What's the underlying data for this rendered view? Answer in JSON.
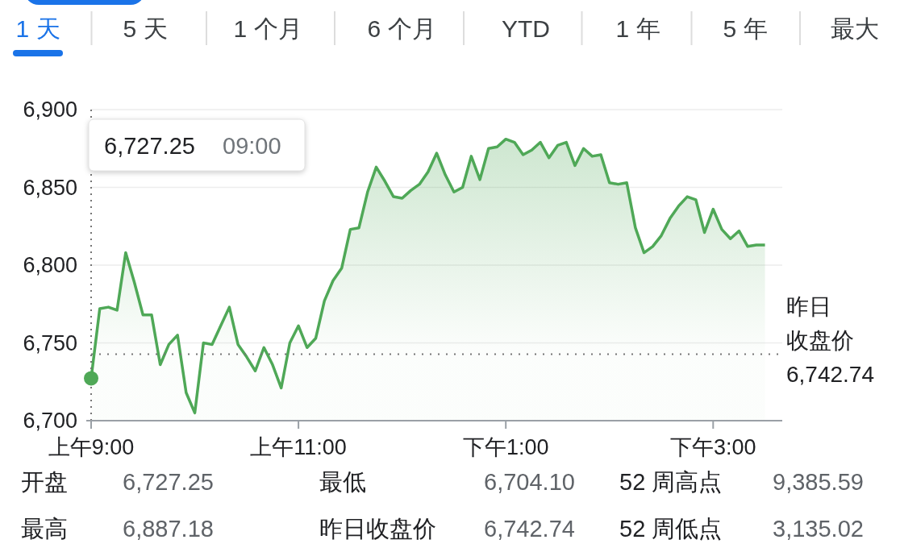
{
  "chart_data": {
    "type": "area",
    "categories": [
      "上午9:00",
      null,
      null,
      null,
      null,
      null,
      null,
      null,
      null,
      null,
      null,
      null,
      null,
      null,
      null,
      null,
      null,
      null,
      null,
      null,
      null,
      null,
      null,
      null,
      "上午11:00",
      null,
      null,
      null,
      null,
      null,
      null,
      null,
      null,
      null,
      null,
      null,
      null,
      null,
      null,
      null,
      null,
      null,
      null,
      null,
      null,
      null,
      null,
      null,
      "下午1:00",
      null,
      null,
      null,
      null,
      null,
      null,
      null,
      null,
      null,
      null,
      null,
      null,
      null,
      null,
      null,
      null,
      null,
      null,
      null,
      null,
      null,
      null,
      null,
      "下午3:00",
      null,
      null,
      null,
      null,
      null,
      null,
      null,
      null
    ],
    "series": [
      {
        "color": "#4fa857",
        "values": [
          6727.25,
          6772,
          6773,
          6771,
          6808,
          6789,
          6768,
          6768,
          6736,
          6749,
          6755,
          6718,
          6705,
          6750,
          6749,
          6761,
          6773,
          6749,
          6741,
          6732,
          6747,
          6736,
          6721,
          6750,
          6761,
          6747,
          6753,
          6777,
          6790,
          6798,
          6823,
          6824,
          6847,
          6863,
          6854,
          6844,
          6843,
          6848,
          6852,
          6860,
          6872,
          6858,
          6847,
          6850,
          6870,
          6855,
          6875,
          6876,
          6881,
          6879,
          6871,
          6874,
          6879,
          6869,
          6877,
          6879,
          6864,
          6875,
          6870,
          6871,
          6853,
          6852,
          6853,
          6824,
          6808,
          6812,
          6819,
          6830,
          6838,
          6844,
          6842,
          6821,
          6836,
          6823,
          6817,
          6822,
          6812,
          6813,
          6813,
          null,
          null
        ]
      },
      {
        "type": "scatter",
        "color": "#4fa857",
        "marker": "circle",
        "x": [
          "上午9:00"
        ],
        "values": [
          6727.25
        ]
      }
    ],
    "ylim": [
      6700,
      6900
    ],
    "yticks": [
      {
        "value": 6700,
        "label": "6,700"
      },
      {
        "value": 6750,
        "label": "6,750"
      },
      {
        "value": 6800,
        "label": "6,800"
      },
      {
        "value": 6850,
        "label": "6,850"
      },
      {
        "value": 6900,
        "label": "6,900"
      }
    ],
    "grid": "y",
    "line_style": "solid",
    "ref_lines": [
      {
        "axis": "y",
        "value": 6742.74,
        "label": "昨日收盘价 6,742.74",
        "line_style": "dotted",
        "color": "#757575"
      }
    ],
    "annotations": [
      "6,727.25",
      "09:00",
      "1 天",
      "5 天",
      "1 个月",
      "6 个月",
      "YTD",
      "1 年",
      "5 年",
      "最大",
      "开盘",
      "6,727.25",
      "最低",
      "6,704.10",
      "52 周高点",
      "9,385.59",
      "最高",
      "6,887.18",
      "昨日收盘价",
      "6,742.74",
      "52 周低点",
      "3,135.02"
    ]
  }
}
